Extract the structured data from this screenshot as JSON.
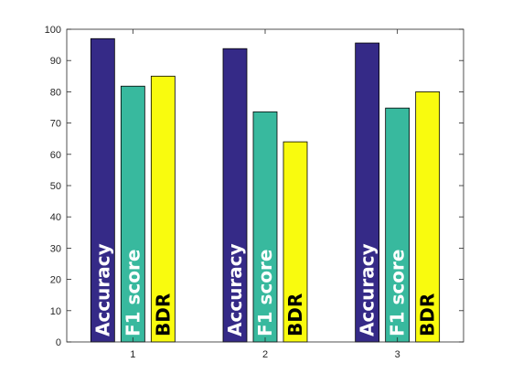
{
  "chart_data": {
    "type": "bar",
    "title": "",
    "xlabel": "",
    "ylabel": "",
    "categories": [
      "1",
      "2",
      "3"
    ],
    "ylim": [
      0,
      100
    ],
    "yticks": [
      0,
      10,
      20,
      30,
      40,
      50,
      60,
      70,
      80,
      90,
      100
    ],
    "grid": false,
    "legend": "none",
    "series": [
      {
        "name": "Accuracy",
        "values": [
          97,
          93.8,
          95.6
        ],
        "color": "#352a87",
        "label_color": "#ffffff"
      },
      {
        "name": "F1 score",
        "values": [
          81.8,
          73.6,
          74.8
        ],
        "color": "#38b99e",
        "label_color": "#ffffff"
      },
      {
        "name": "BDR",
        "values": [
          85,
          64,
          80
        ],
        "color": "#f9fb0e",
        "label_color": "#000000"
      }
    ]
  }
}
